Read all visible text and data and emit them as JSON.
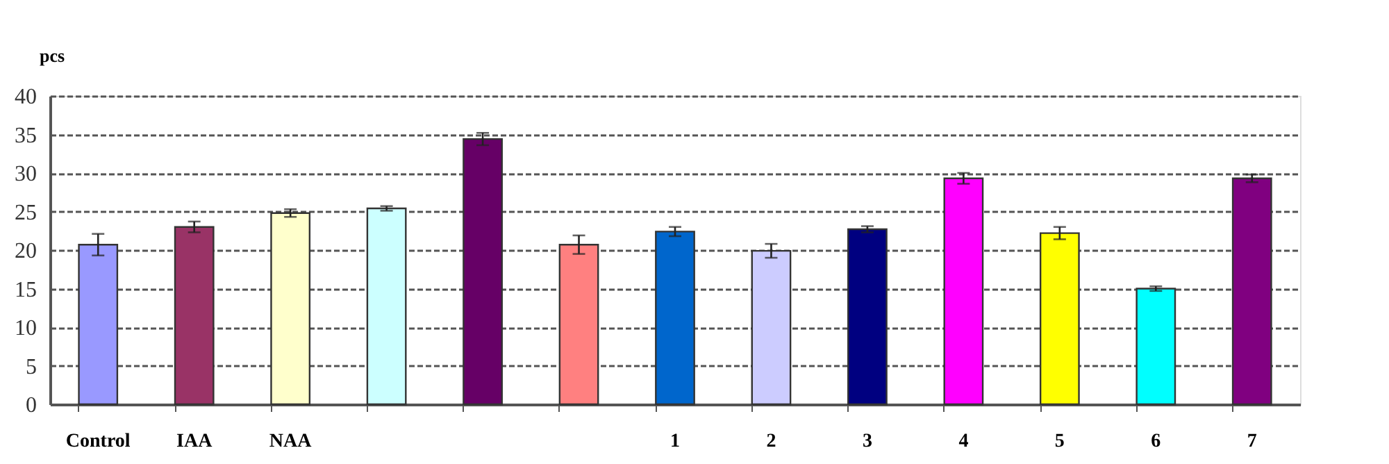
{
  "chart_data": {
    "type": "bar",
    "ylabel": "pcs",
    "categories": [
      "Control",
      "IAA",
      "NAA",
      null,
      null,
      null,
      "1",
      "2",
      "3",
      "4",
      "5",
      "6",
      "7"
    ],
    "values": [
      20.7,
      23.0,
      24.8,
      25.4,
      34.4,
      20.7,
      22.4,
      19.9,
      22.7,
      29.3,
      22.2,
      15.0,
      29.3
    ],
    "errors": [
      1.4,
      0.7,
      0.5,
      0.3,
      0.8,
      1.2,
      0.6,
      0.9,
      0.4,
      0.7,
      0.8,
      0.3,
      0.5
    ],
    "colors": [
      "#9999ff",
      "#993366",
      "#ffffcc",
      "#ccffff",
      "#660066",
      "#ff8080",
      "#0066cc",
      "#ccccff",
      "#000080",
      "#ff00ff",
      "#ffff00",
      "#00ffff",
      "#800080"
    ],
    "ylim": [
      0,
      40
    ],
    "yticks": [
      0,
      5,
      10,
      15,
      20,
      25,
      30,
      35,
      40
    ],
    "grid": "y"
  }
}
